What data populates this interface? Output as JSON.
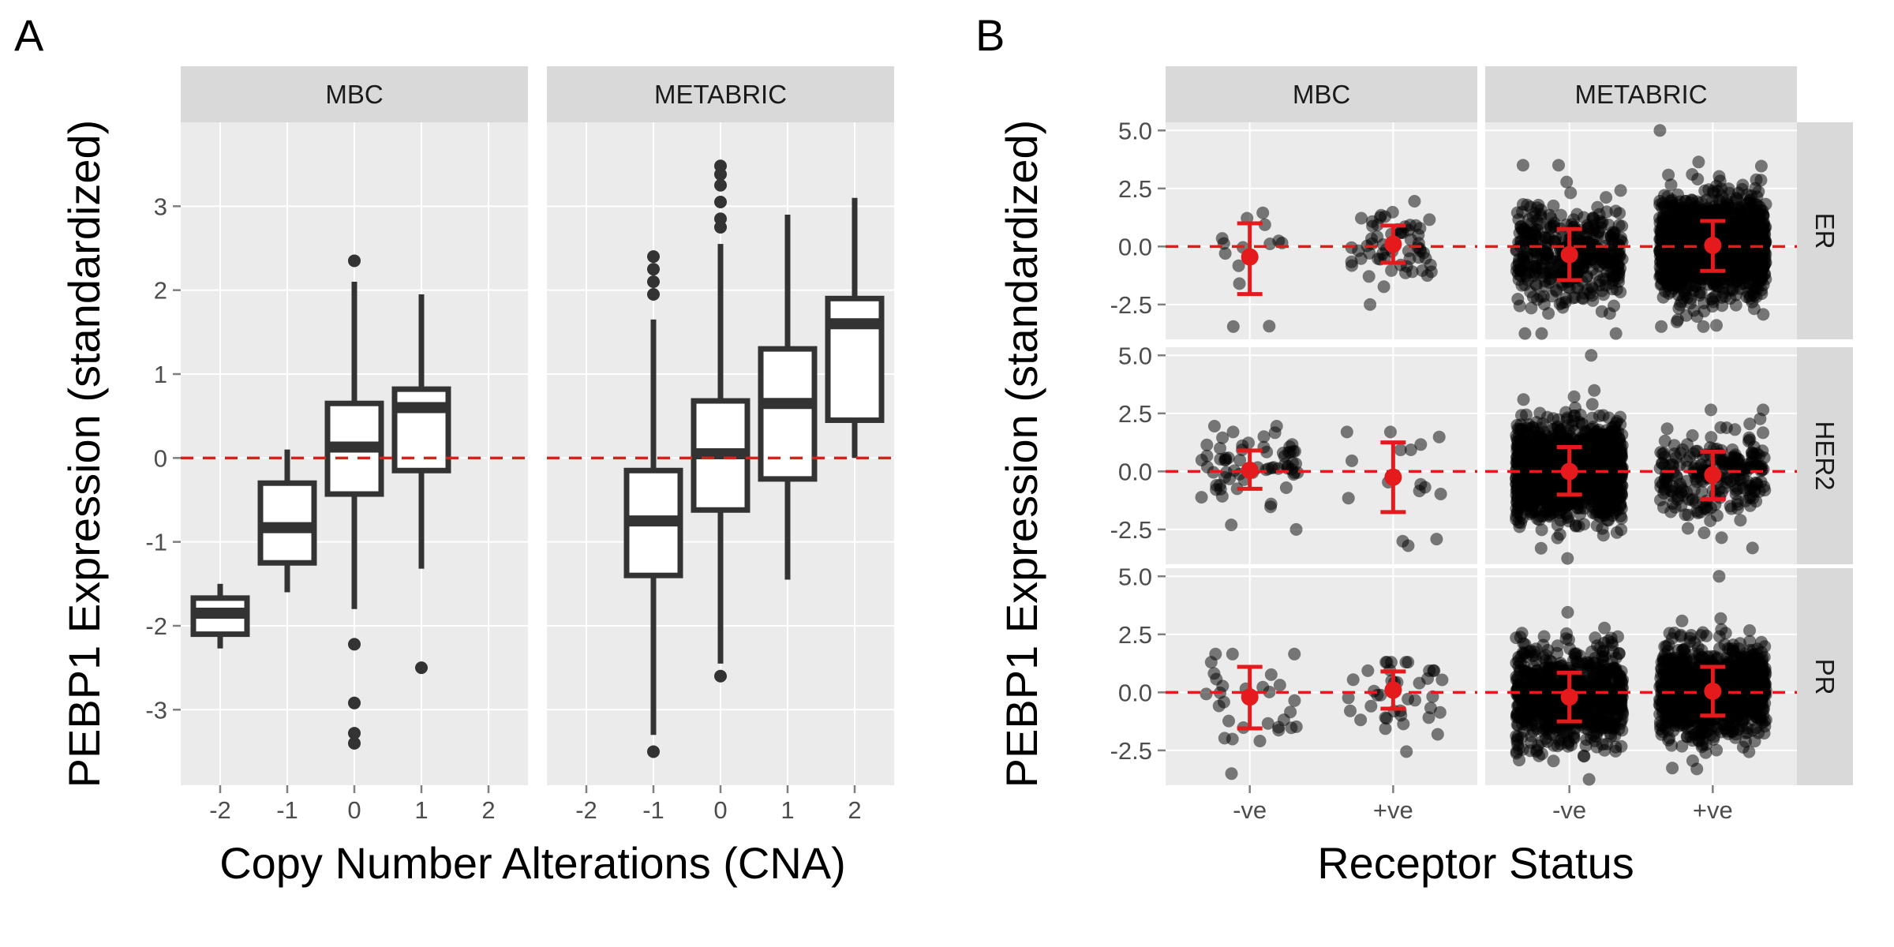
{
  "figure": {
    "panel_a_letter": "A",
    "panel_b_letter": "B"
  },
  "chart_data": [
    {
      "panel": "A",
      "type": "box",
      "xlabel": "Copy Number Alterations (CNA)",
      "ylabel": "PEBP1 Expression (standardized)",
      "x_ticks": [
        "-2",
        "-1",
        "0",
        "1",
        "2"
      ],
      "y_ticks": [
        -3,
        -2,
        -1,
        0,
        1,
        2,
        3
      ],
      "ylim": [
        -3.9,
        4.0
      ],
      "reference_line": 0,
      "reference_line_color": "#e41a1c",
      "box_color": "#333333",
      "facets": [
        {
          "name": "MBC",
          "boxes": [
            {
              "x": -2,
              "q1": -2.1,
              "median": -1.85,
              "q3": -1.67,
              "whisker_low": -2.27,
              "whisker_high": -1.5,
              "outliers": []
            },
            {
              "x": -1,
              "q1": -1.25,
              "median": -0.83,
              "q3": -0.3,
              "whisker_low": -1.6,
              "whisker_high": 0.1,
              "outliers": []
            },
            {
              "x": 0,
              "q1": -0.43,
              "median": 0.13,
              "q3": 0.65,
              "whisker_low": -1.8,
              "whisker_high": 2.1,
              "outliers": [
                2.35,
                -2.22,
                -2.92,
                -3.28,
                -3.4
              ]
            },
            {
              "x": 1,
              "q1": -0.15,
              "median": 0.6,
              "q3": 0.82,
              "whisker_low": -1.32,
              "whisker_high": 1.95,
              "outliers": [
                -2.5
              ]
            }
          ]
        },
        {
          "name": "METABRIC",
          "boxes": [
            {
              "x": -1,
              "q1": -1.4,
              "median": -0.75,
              "q3": -0.15,
              "whisker_low": -3.3,
              "whisker_high": 1.65,
              "outliers": [
                2.4,
                2.25,
                2.1,
                1.95,
                -3.5
              ]
            },
            {
              "x": 0,
              "q1": -0.62,
              "median": 0.05,
              "q3": 0.68,
              "whisker_low": -2.45,
              "whisker_high": 2.55,
              "outliers": [
                3.48,
                3.38,
                3.25,
                3.05,
                2.85,
                2.75,
                -2.6
              ]
            },
            {
              "x": 1,
              "q1": -0.25,
              "median": 0.65,
              "q3": 1.3,
              "whisker_low": -1.45,
              "whisker_high": 2.9,
              "outliers": []
            },
            {
              "x": 2,
              "q1": 0.45,
              "median": 1.6,
              "q3": 1.9,
              "whisker_low": 0.0,
              "whisker_high": 3.1,
              "outliers": []
            }
          ]
        }
      ]
    },
    {
      "panel": "B",
      "type": "scatter",
      "xlabel": "Receptor Status",
      "ylabel": "PEBP1 Expression (standardized)",
      "categories": [
        "-ve",
        "+ve"
      ],
      "y_ticks": [
        -2.5,
        0.0,
        2.5,
        5.0
      ],
      "y_tick_labels": [
        "-2.5",
        "0.0",
        "2.5",
        "5.0"
      ],
      "ylim": [
        -4.0,
        5.35
      ],
      "reference_line": 0,
      "point_color": "#333333",
      "summary_color": "#e41a1c",
      "col_facets": [
        "MBC",
        "METABRIC"
      ],
      "row_facets": [
        "ER",
        "HER2",
        "PR"
      ],
      "cells": [
        {
          "col": "MBC",
          "row": "ER",
          "groups": [
            {
              "x": "-ve",
              "n": 14,
              "spread": 0.3,
              "mean": -0.45,
              "low": -2.05,
              "high": 1.0,
              "min": -3.45,
              "max": 1.45
            },
            {
              "x": "+ve",
              "n": 60,
              "spread": 0.3,
              "mean": 0.1,
              "low": -0.7,
              "high": 0.9,
              "min": -2.5,
              "max": 1.95
            }
          ]
        },
        {
          "col": "METABRIC",
          "row": "ER",
          "groups": [
            {
              "x": "-ve",
              "n": 420,
              "spread": 0.38,
              "mean": -0.35,
              "low": -1.45,
              "high": 0.75,
              "min": -3.75,
              "max": 3.5
            },
            {
              "x": "+ve",
              "n": 1500,
              "spread": 0.38,
              "mean": 0.05,
              "low": -1.05,
              "high": 1.1,
              "min": -3.45,
              "max": 5.0
            }
          ]
        },
        {
          "col": "MBC",
          "row": "HER2",
          "groups": [
            {
              "x": "-ve",
              "n": 65,
              "spread": 0.35,
              "mean": 0.05,
              "low": -0.75,
              "high": 0.9,
              "min": -2.5,
              "max": 1.95
            },
            {
              "x": "+ve",
              "n": 16,
              "spread": 0.35,
              "mean": -0.25,
              "low": -1.75,
              "high": 1.25,
              "min": -3.2,
              "max": 1.7
            }
          ]
        },
        {
          "col": "METABRIC",
          "row": "HER2",
          "groups": [
            {
              "x": "-ve",
              "n": 1600,
              "spread": 0.38,
              "mean": 0.0,
              "low": -1.0,
              "high": 1.05,
              "min": -3.75,
              "max": 5.0
            },
            {
              "x": "+ve",
              "n": 240,
              "spread": 0.38,
              "mean": -0.15,
              "low": -1.2,
              "high": 0.85,
              "min": -3.3,
              "max": 2.65
            }
          ]
        },
        {
          "col": "MBC",
          "row": "PR",
          "groups": [
            {
              "x": "-ve",
              "n": 30,
              "spread": 0.35,
              "mean": -0.2,
              "low": -1.55,
              "high": 1.1,
              "min": -3.5,
              "max": 1.65
            },
            {
              "x": "+ve",
              "n": 40,
              "spread": 0.35,
              "mean": 0.1,
              "low": -0.7,
              "high": 0.9,
              "min": -2.55,
              "max": 1.3
            }
          ]
        },
        {
          "col": "METABRIC",
          "row": "PR",
          "groups": [
            {
              "x": "-ve",
              "n": 880,
              "spread": 0.38,
              "mean": -0.2,
              "low": -1.25,
              "high": 0.85,
              "min": -3.75,
              "max": 3.45
            },
            {
              "x": "+ve",
              "n": 1000,
              "spread": 0.38,
              "mean": 0.05,
              "low": -1.0,
              "high": 1.1,
              "min": -3.3,
              "max": 5.0
            }
          ]
        }
      ]
    }
  ]
}
